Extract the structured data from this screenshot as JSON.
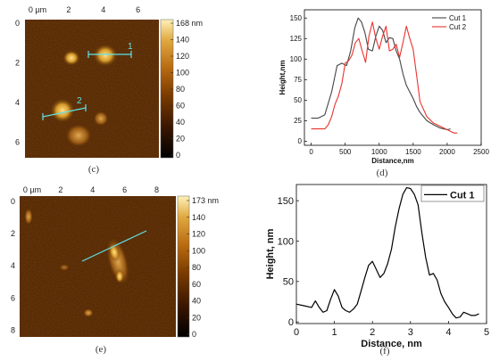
{
  "panels": {
    "c": {
      "label": "(c)",
      "afm": {
        "x_ticks": [
          "0 µm",
          "2",
          "4",
          "6"
        ],
        "y_ticks": [
          "0",
          "2",
          "4",
          "6"
        ],
        "colorbar_ticks": [
          "168 nm",
          "140",
          "120",
          "100",
          "80",
          "60",
          "40",
          "20",
          "0"
        ],
        "cut_labels": [
          "1",
          "2"
        ],
        "colormap": [
          "#000000",
          "#3a1600",
          "#7a3b00",
          "#b86a10",
          "#e0a840",
          "#fff1b8"
        ]
      }
    },
    "d": {
      "label": "(d)",
      "chart_data": {
        "type": "line",
        "xlabel": "Distance,nm",
        "ylabel": "Height,nm",
        "xlim": [
          -100,
          2500
        ],
        "ylim": [
          -5,
          160
        ],
        "x_ticks": [
          0,
          500,
          1000,
          1500,
          2000,
          2500
        ],
        "y_ticks": [
          0,
          25,
          50,
          75,
          100,
          125,
          150
        ],
        "legend_position": "top-right",
        "series": [
          {
            "name": "Cut 1",
            "color": "#444444",
            "x": [
              0,
              100,
              200,
              300,
              380,
              450,
              520,
              580,
              640,
              690,
              740,
              790,
              840,
              900,
              950,
              1000,
              1050,
              1100,
              1150,
              1200,
              1250,
              1300,
              1350,
              1400,
              1450,
              1500,
              1550,
              1600,
              1700,
              1800,
              1900,
              2000,
              2050
            ],
            "y": [
              28,
              28,
              32,
              60,
              92,
              95,
              92,
              110,
              138,
              150,
              145,
              132,
              112,
              110,
              128,
              140,
              135,
              120,
              126,
              125,
              110,
              100,
              82,
              68,
              60,
              52,
              42,
              35,
              25,
              20,
              16,
              14,
              15
            ]
          },
          {
            "name": "Cut 2",
            "color": "#e8332e",
            "x": [
              0,
              100,
              200,
              250,
              300,
              350,
              400,
              450,
              500,
              550,
              600,
              650,
              700,
              750,
              800,
              850,
              900,
              950,
              1000,
              1050,
              1100,
              1150,
              1200,
              1250,
              1300,
              1350,
              1400,
              1450,
              1500,
              1550,
              1600,
              1700,
              1800,
              1900,
              2000,
              2100,
              2150
            ],
            "y": [
              15,
              15,
              15,
              20,
              30,
              45,
              55,
              70,
              95,
              98,
              105,
              120,
              125,
              110,
              96,
              128,
              145,
              125,
              112,
              128,
              140,
              110,
              112,
              118,
              102,
              120,
              140,
              125,
              112,
              80,
              48,
              30,
              22,
              18,
              14,
              10,
              10
            ]
          }
        ]
      }
    },
    "e": {
      "label": "(e)",
      "afm": {
        "x_ticks": [
          "0 µm",
          "2",
          "4",
          "6",
          "8"
        ],
        "y_ticks": [
          "0",
          "2",
          "4",
          "6",
          "8"
        ],
        "colorbar_ticks": [
          "173 nm",
          "140",
          "120",
          "100",
          "80",
          "60",
          "40",
          "20",
          "0"
        ]
      }
    },
    "f": {
      "label": "(f)",
      "chart_data": {
        "type": "line",
        "xlabel": "Distance, nm",
        "ylabel": "Height, nm",
        "xlim": [
          0,
          5
        ],
        "ylim": [
          -2,
          170
        ],
        "x_ticks": [
          0,
          1,
          2,
          3,
          4,
          5
        ],
        "y_ticks": [
          0,
          50,
          100,
          150
        ],
        "legend_position": "top-right",
        "series": [
          {
            "name": "Cut 1",
            "color": "#000000",
            "x": [
              0,
              0.2,
              0.4,
              0.5,
              0.6,
              0.7,
              0.8,
              0.9,
              1.0,
              1.1,
              1.2,
              1.3,
              1.4,
              1.5,
              1.6,
              1.7,
              1.8,
              1.9,
              2.0,
              2.1,
              2.2,
              2.3,
              2.4,
              2.5,
              2.6,
              2.7,
              2.8,
              2.9,
              3.0,
              3.1,
              3.2,
              3.3,
              3.4,
              3.5,
              3.6,
              3.7,
              3.8,
              3.9,
              4.0,
              4.1,
              4.2,
              4.3,
              4.4,
              4.5,
              4.6,
              4.7,
              4.8
            ],
            "y": [
              22,
              20,
              18,
              26,
              18,
              12,
              14,
              28,
              40,
              32,
              18,
              14,
              12,
              16,
              22,
              38,
              55,
              70,
              75,
              65,
              55,
              60,
              72,
              90,
              118,
              140,
              158,
              166,
              165,
              158,
              145,
              110,
              80,
              58,
              60,
              52,
              35,
              25,
              18,
              10,
              5,
              6,
              12,
              10,
              8,
              8,
              10
            ]
          }
        ]
      }
    }
  }
}
